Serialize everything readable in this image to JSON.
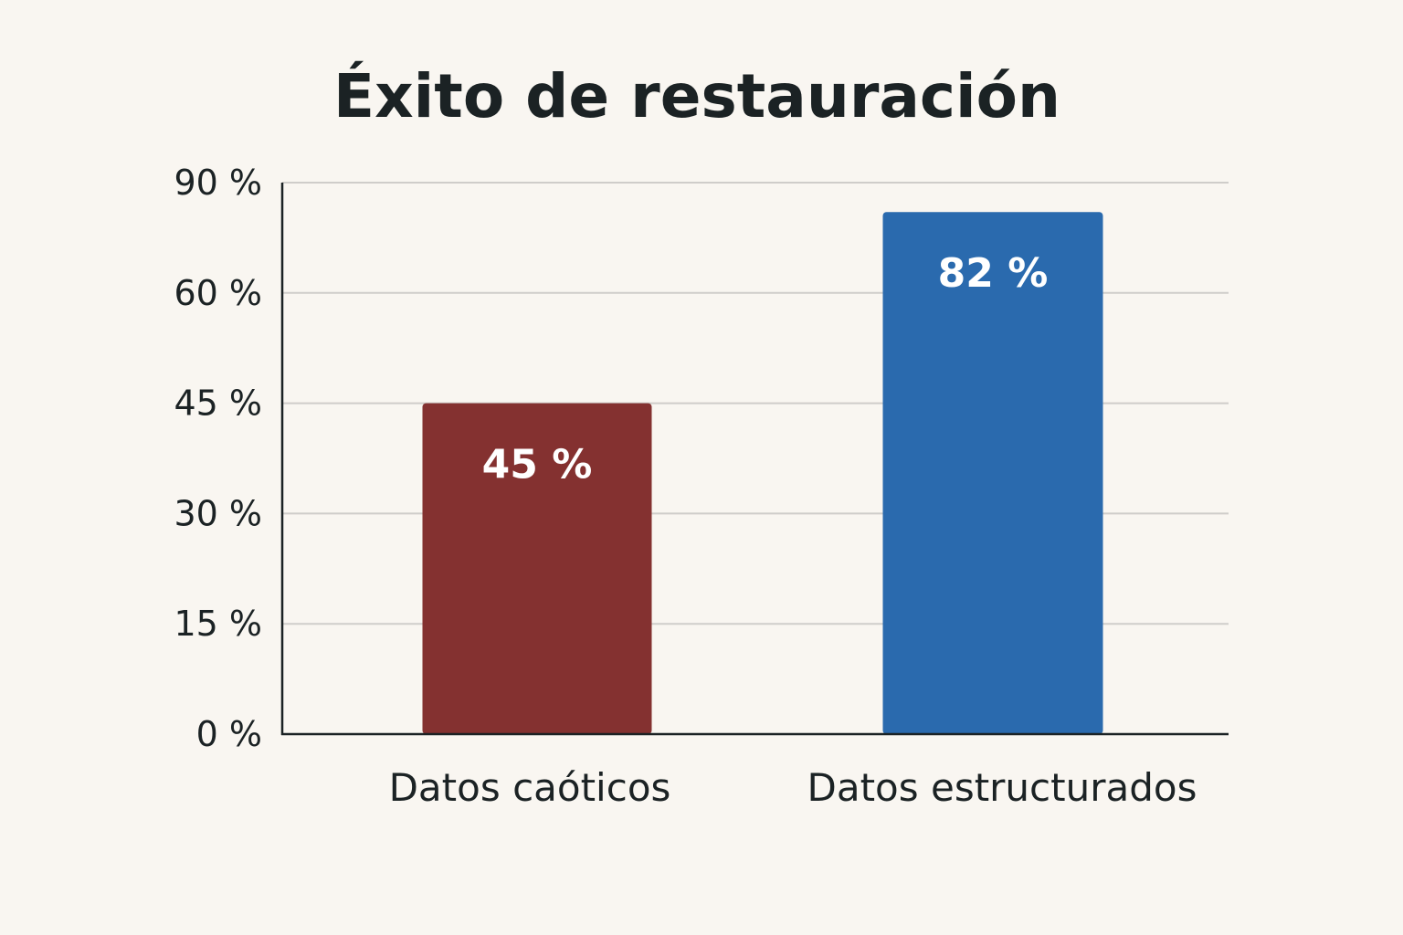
{
  "chart_data": {
    "type": "bar",
    "title": "Éxito de restauración",
    "xlabel": "",
    "ylabel": "",
    "categories": [
      "Datos caóticos",
      "Datos estructurados"
    ],
    "values": [
      45,
      82
    ],
    "data_labels": [
      "45 %",
      "82 %"
    ],
    "bar_colors": [
      "#843130",
      "#2a6aae"
    ],
    "y_ticks": [
      0,
      15,
      30,
      45,
      60,
      90
    ],
    "y_tick_labels": [
      "0 %",
      "15 %",
      "30 %",
      "45 %",
      "60 %",
      "90 %"
    ],
    "ylim": [
      0,
      90
    ],
    "grid": true,
    "legend": "none"
  }
}
